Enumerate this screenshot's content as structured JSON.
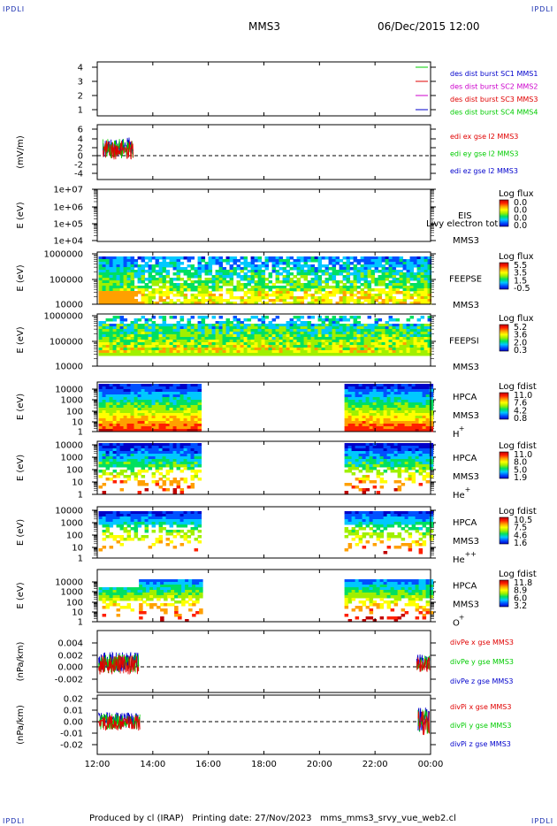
{
  "corners": {
    "tl": "IPDLI",
    "tr": "IPDLI",
    "bl": "IPDLI",
    "br": "IPDLI"
  },
  "header": {
    "spacecraft": "MMS3",
    "datetime": "06/Dec/2015 12:00"
  },
  "footer": {
    "text": "Produced by cl (IRAP)   Printing date: 27/Nov/2023   mms_mms3_srvy_vue_web2.cl"
  },
  "colors": {
    "red": "#e00000",
    "green": "#00cc00",
    "blue": "#0000cc",
    "magenta": "#cc00cc",
    "rainbow": [
      "#0000c8",
      "#0050ff",
      "#00c8ff",
      "#00e060",
      "#a0f000",
      "#ffff00",
      "#ffa000",
      "#ff2000",
      "#c00000"
    ]
  },
  "chart_data": {
    "type": "multi-panel time series / spectrogram",
    "x_ticks": [
      "12:00",
      "14:00",
      "16:00",
      "18:00",
      "20:00",
      "22:00",
      "00:00"
    ],
    "xlim_hours": [
      12,
      24
    ],
    "panels": [
      {
        "id": "burst",
        "type": "line",
        "ylabel": "",
        "y_ticks": [
          "4",
          "3",
          "2",
          "1"
        ],
        "legend": [
          {
            "text": "des dist burst SC1 MMS1",
            "color": "#0000cc"
          },
          {
            "text": "des dist burst SC2 MMS2",
            "color": "#cc00cc"
          },
          {
            "text": "des dist burst SC3 MMS3",
            "color": "#e00000"
          },
          {
            "text": "des dist burst SC4 MMS4",
            "color": "#00cc00"
          }
        ]
      },
      {
        "id": "edi",
        "type": "line",
        "ylabel": "(mV/m)",
        "y_ticks": [
          "6",
          "4",
          "2",
          "0",
          "-2",
          "-4"
        ],
        "data_range_hours": [
          12.2,
          13.3
        ],
        "legend": [
          {
            "text": "edi ex gse l2 MMS3",
            "color": "#e00000"
          },
          {
            "text": "edi ey gse l2 MMS3",
            "color": "#00cc00"
          },
          {
            "text": "edi ez gse l2 MMS3",
            "color": "#0000cc"
          }
        ]
      },
      {
        "id": "eis",
        "type": "heatmap",
        "ylabel": "E (eV)",
        "y_ticks": [
          "1e+07",
          "1e+06",
          "1e+05",
          "1e+04"
        ],
        "labels": [
          "EIS",
          "Livy electron tot",
          "MMS3"
        ],
        "cbar_title": "Log flux",
        "cbar_ticks": [
          "0.0",
          "0.0",
          "0.0",
          "0.0"
        ]
      },
      {
        "id": "feepse",
        "type": "heatmap",
        "ylabel": "E (eV)",
        "y_ticks": [
          "1000000",
          "100000",
          "10000"
        ],
        "labels": [
          "FEEPSE",
          "MMS3"
        ],
        "cbar_title": "Log flux",
        "cbar_ticks": [
          "5.5",
          "3.5",
          "1.5",
          "-0.5"
        ]
      },
      {
        "id": "feepsi",
        "type": "heatmap",
        "ylabel": "E (eV)",
        "y_ticks": [
          "1000000",
          "100000",
          "10000"
        ],
        "labels": [
          "FEEPSI",
          "MMS3"
        ],
        "cbar_title": "Log flux",
        "cbar_ticks": [
          "5.2",
          "3.6",
          "2.0",
          "0.3"
        ]
      },
      {
        "id": "hpca_h",
        "type": "heatmap",
        "ylabel": "E (eV)",
        "y_ticks": [
          "10000",
          "1000",
          "100",
          "10",
          "1"
        ],
        "labels": [
          "HPCA",
          "MMS3",
          "H",
          "+"
        ],
        "cbar_title": "Log fdist",
        "cbar_ticks": [
          "11.0",
          "7.6",
          "4.2",
          "0.8"
        ]
      },
      {
        "id": "hpca_he",
        "type": "heatmap",
        "ylabel": "E (eV)",
        "y_ticks": [
          "10000",
          "1000",
          "100",
          "10",
          "1"
        ],
        "labels": [
          "HPCA",
          "MMS3",
          "He",
          "+"
        ],
        "cbar_title": "Log fdist",
        "cbar_ticks": [
          "11.0",
          "8.0",
          "5.0",
          "1.9"
        ]
      },
      {
        "id": "hpca_hepp",
        "type": "heatmap",
        "ylabel": "E (eV)",
        "y_ticks": [
          "10000",
          "1000",
          "100",
          "10",
          "1"
        ],
        "labels": [
          "HPCA",
          "MMS3",
          "He",
          "++"
        ],
        "cbar_title": "Log fdist",
        "cbar_ticks": [
          "10.5",
          "7.5",
          "4.6",
          "1.6"
        ]
      },
      {
        "id": "hpca_o",
        "type": "heatmap",
        "ylabel": "E (eV)",
        "y_ticks": [
          "10000",
          "1000",
          "100",
          "10",
          "1"
        ],
        "labels": [
          "HPCA",
          "MMS3",
          "O",
          "+"
        ],
        "cbar_title": "Log fdist",
        "cbar_ticks": [
          "11.8",
          "8.9",
          "6.0",
          "3.2"
        ]
      },
      {
        "id": "divpe",
        "type": "line",
        "ylabel": "(nPa/km)",
        "y_ticks": [
          "0.004",
          "0.002",
          "0.000",
          "-0.002"
        ],
        "legend": [
          {
            "text": "divPe x gse MMS3",
            "color": "#e00000"
          },
          {
            "text": "divPe y gse MMS3",
            "color": "#00cc00"
          },
          {
            "text": "divPe z gse MMS3",
            "color": "#0000cc"
          }
        ]
      },
      {
        "id": "divpi",
        "type": "line",
        "ylabel": "(nPa/km)",
        "y_ticks": [
          "0.02",
          "0.01",
          "0.00",
          "-0.01",
          "-0.02"
        ],
        "legend": [
          {
            "text": "divPi x gse MMS3",
            "color": "#e00000"
          },
          {
            "text": "divPi y gse MMS3",
            "color": "#00cc00"
          },
          {
            "text": "divPi z gse MMS3",
            "color": "#0000cc"
          }
        ]
      }
    ]
  }
}
